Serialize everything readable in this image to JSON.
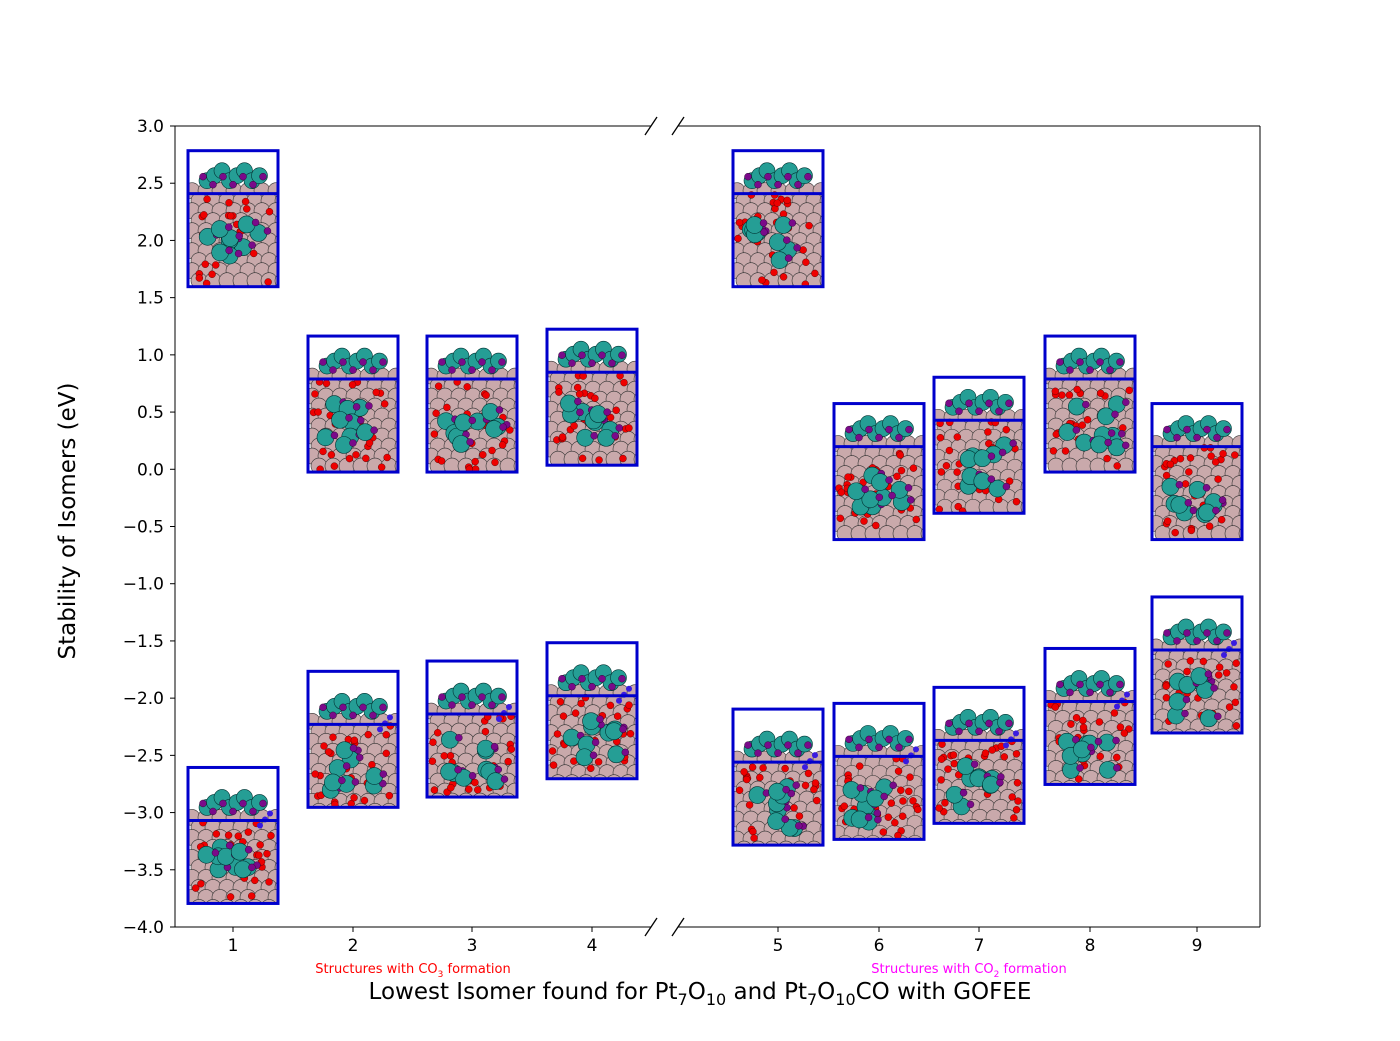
{
  "chart_data": {
    "type": "scatter",
    "title": "",
    "ylabel": "Stability of Isomers (eV)",
    "xlabel": {
      "parts": [
        {
          "t": "Lowest Isomer found for Pt"
        },
        {
          "t": "7",
          "sub": true
        },
        {
          "t": "O"
        },
        {
          "t": "10",
          "sub": true
        },
        {
          "t": " and Pt"
        },
        {
          "t": "7",
          "sub": true
        },
        {
          "t": "O"
        },
        {
          "t": "10",
          "sub": true
        },
        {
          "t": "CO with GOFEE"
        }
      ]
    },
    "ylim": [
      -4.0,
      3.0
    ],
    "yticks": [
      "3.0",
      "2.5",
      "2.0",
      "1.5",
      "1.0",
      "0.5",
      "0.0",
      "−0.5",
      "−1.0",
      "−1.5",
      "−2.0",
      "−2.5",
      "−3.0",
      "−3.5",
      "−4.0"
    ],
    "ytick_values": [
      3.0,
      2.5,
      2.0,
      1.5,
      1.0,
      0.5,
      0.0,
      -0.5,
      -1.0,
      -1.5,
      -2.0,
      -2.5,
      -3.0,
      -3.5,
      -4.0
    ],
    "xticks": [
      "1",
      "2",
      "3",
      "4",
      "5",
      "6",
      "7",
      "8",
      "9"
    ],
    "broken_axis": true,
    "grid": false,
    "series": [
      {
        "x": [
          "1",
          "2",
          "3",
          "4",
          "5",
          "6",
          "7",
          "8",
          "9"
        ],
        "values": [
          2.19,
          0.57,
          0.57,
          0.63,
          2.19,
          -0.02,
          0.21,
          0.57,
          -0.02
        ]
      },
      {
        "x": [
          "1",
          "2",
          "3",
          "4",
          "5",
          "6",
          "7",
          "8",
          "9"
        ],
        "values": [
          -3.2,
          -2.36,
          -2.27,
          -2.11,
          -2.69,
          -2.64,
          -2.5,
          -2.16,
          -1.71
        ]
      }
    ],
    "annotations": [
      {
        "id": "co3",
        "color": "#ff0000",
        "parts": [
          {
            "t": "Structures with CO"
          },
          {
            "t": "3",
            "sub": true
          },
          {
            "t": " formation"
          }
        ]
      },
      {
        "id": "co2",
        "color": "#ff00ff",
        "parts": [
          {
            "t": "Structures with CO"
          },
          {
            "t": "2",
            "sub": true
          },
          {
            "t": " formation"
          }
        ]
      }
    ],
    "marker": {
      "frame_color": "#0000cc",
      "substrate_color": "#c9a9ab",
      "oxygen_color": "#ee0000",
      "platinum_color": "#259e95",
      "adsorbate_oxygen_color": "#7a0a8a",
      "carbon_color": "#3a1ae0"
    }
  }
}
